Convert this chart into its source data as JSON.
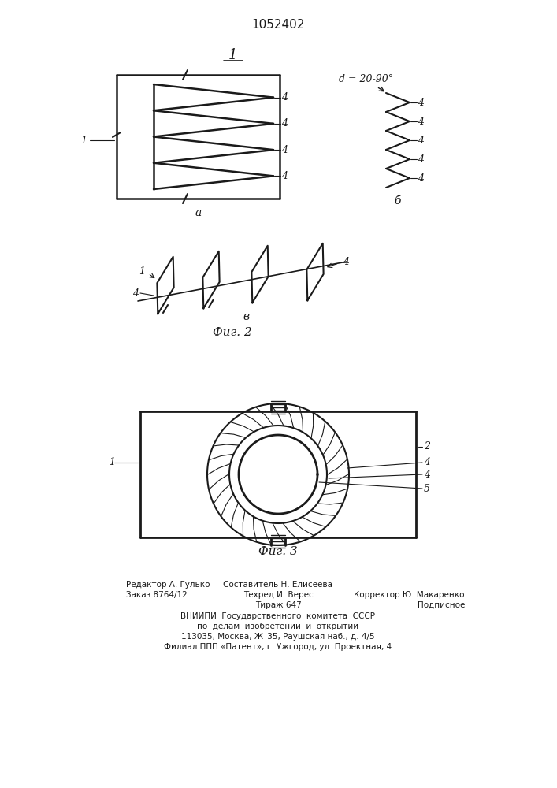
{
  "patent_number": "1052402",
  "fig2_label": "Фиг. 2",
  "fig3_label": "Фиг. 3",
  "bg_color": "#ffffff",
  "line_color": "#1a1a1a"
}
